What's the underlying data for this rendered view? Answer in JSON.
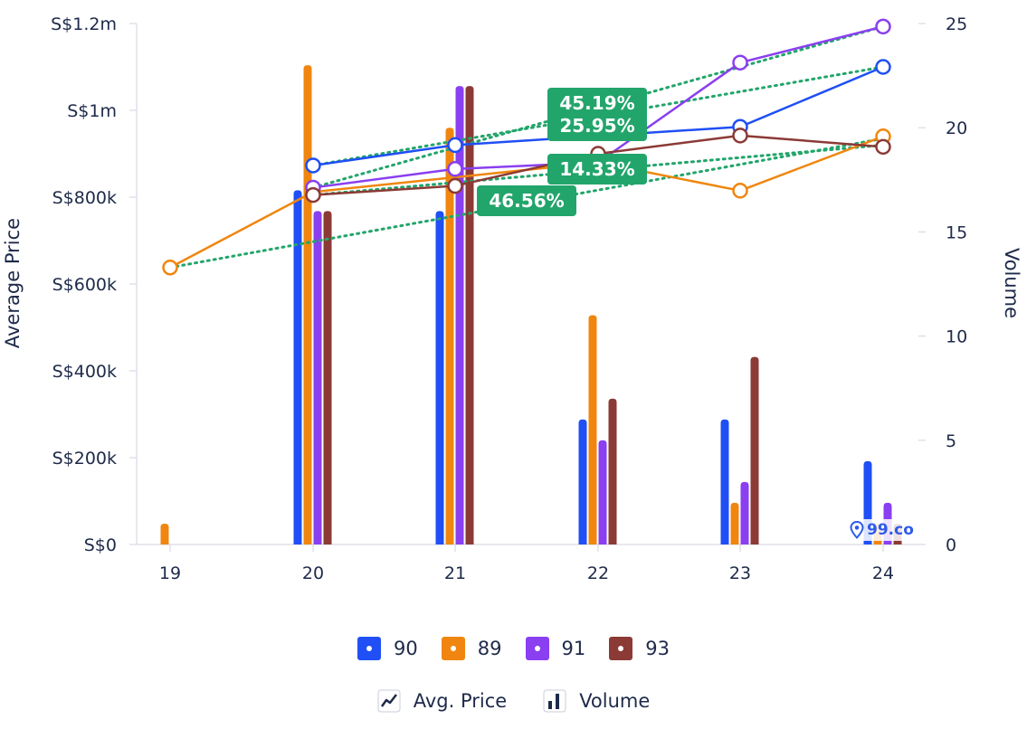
{
  "chart_data": {
    "type": "bar+line",
    "categories": [
      "19",
      "20",
      "21",
      "22",
      "23",
      "24"
    ],
    "y_left": {
      "label": "Average Price",
      "ticks": [
        "S$0",
        "S$200k",
        "S$400k",
        "S$600k",
        "S$800k",
        "S$1m",
        "S$1.2m"
      ],
      "range": [
        0,
        1200000
      ]
    },
    "y_right": {
      "label": "Volume",
      "ticks": [
        "0",
        "5",
        "10",
        "15",
        "20",
        "25"
      ],
      "range": [
        0,
        25
      ]
    },
    "series": [
      {
        "name": "90",
        "color": "#1f4ff5",
        "volume": [
          null,
          17,
          16,
          6,
          6,
          4
        ],
        "avg_price": [
          null,
          873000,
          920000,
          null,
          962000,
          1100000
        ],
        "trend_label": "25.95%"
      },
      {
        "name": "89",
        "color": "#f0860f",
        "volume": [
          1,
          23,
          20,
          11,
          2,
          1
        ],
        "avg_price": [
          638000,
          812000,
          null,
          880000,
          815000,
          940000
        ],
        "trend_label": "46.56%"
      },
      {
        "name": "91",
        "color": "#8a3ff0",
        "volume": [
          null,
          16,
          22,
          5,
          3,
          2
        ],
        "avg_price": [
          null,
          822000,
          865000,
          880000,
          1110000,
          1193000
        ],
        "trend_label": "45.19%"
      },
      {
        "name": "93",
        "color": "#8b3a35",
        "volume": [
          null,
          16,
          22,
          7,
          9,
          1
        ],
        "avg_price": [
          null,
          805000,
          826000,
          900000,
          942000,
          916000
        ],
        "trend_label": "14.33%"
      }
    ],
    "trend_color": "#22a56b",
    "trendlines": [
      {
        "series": "90",
        "avg_price": [
          873000,
          1100000
        ],
        "from": "20",
        "to": "24"
      },
      {
        "series": "89",
        "avg_price": [
          638000,
          935000
        ],
        "from": "19",
        "to": "24"
      },
      {
        "series": "91",
        "avg_price": [
          822000,
          1193000
        ],
        "from": "20",
        "to": "24"
      },
      {
        "series": "93",
        "avg_price": [
          805000,
          920000
        ],
        "from": "20",
        "to": "24"
      }
    ],
    "badges": [
      "45.19%",
      "25.95%",
      "14.33%",
      "46.56%"
    ]
  },
  "legend": {
    "series": [
      {
        "name": "90",
        "color": "#1f4ff5"
      },
      {
        "name": "89",
        "color": "#f0860f"
      },
      {
        "name": "91",
        "color": "#8a3ff0"
      },
      {
        "name": "93",
        "color": "#8b3a35"
      }
    ],
    "modes": {
      "avg_price": "Avg. Price",
      "volume": "Volume"
    }
  },
  "watermark": {
    "text": "99.co",
    "icon": "map-pin-icon"
  }
}
